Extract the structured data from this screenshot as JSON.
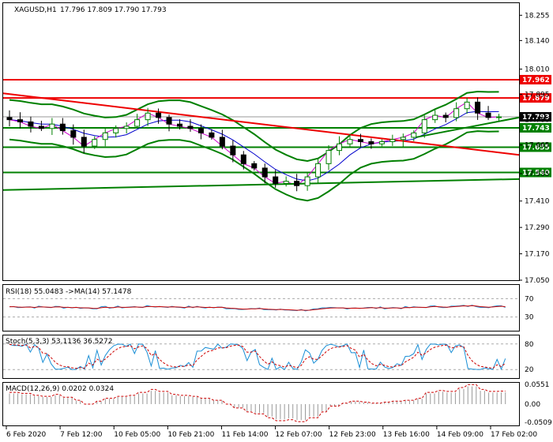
{
  "chart_data": {
    "type": "candlestick",
    "symbol": "XAGUSD,H1",
    "ohlc_label": "17.796 17.809 17.790 17.793",
    "price_ylim": [
      17.05,
      18.31
    ],
    "price_ticks": [
      "18.255",
      "18.140",
      "18.010",
      "17.895",
      "17.780",
      "17.665",
      "17.535",
      "17.410",
      "17.290",
      "17.170",
      "17.050"
    ],
    "x_labels": [
      "6 Feb 2020",
      "7 Feb 12:00",
      "10 Feb 05:00",
      "10 Feb 21:00",
      "11 Feb 14:00",
      "12 Feb 07:00",
      "12 Feb 23:00",
      "13 Feb 16:00",
      "14 Feb 09:00",
      "17 Feb 02:00"
    ],
    "price_closes": [
      17.78,
      17.77,
      17.75,
      17.74,
      17.76,
      17.73,
      17.7,
      17.66,
      17.69,
      17.72,
      17.74,
      17.75,
      17.78,
      17.81,
      17.79,
      17.76,
      17.75,
      17.74,
      17.72,
      17.7,
      17.66,
      17.62,
      17.58,
      17.56,
      17.52,
      17.49,
      17.5,
      17.48,
      17.52,
      17.58,
      17.64,
      17.67,
      17.69,
      17.68,
      17.67,
      17.68,
      17.69,
      17.7,
      17.72,
      17.78,
      17.8,
      17.79,
      17.83,
      17.86,
      17.81,
      17.79,
      17.793
    ],
    "levels": [
      {
        "label": "17.962",
        "value": 17.962,
        "color": "#ee0000"
      },
      {
        "label": "17.879",
        "value": 17.879,
        "color": "#ee0000"
      },
      {
        "label": "17.743",
        "value": 17.743,
        "color": "#008000"
      },
      {
        "label": "17.655",
        "value": 17.655,
        "color": "#008000"
      },
      {
        "label": "17.540",
        "value": 17.54,
        "color": "#008000"
      }
    ],
    "current_price": {
      "label": "17.793",
      "value": 17.793
    },
    "trendlines": [
      {
        "color": "#ee0000",
        "from": [
          0,
          17.9
        ],
        "to": [
          1,
          17.62
        ]
      },
      {
        "color": "#008000",
        "from": [
          0,
          17.46
        ],
        "to": [
          1,
          17.51
        ]
      },
      {
        "color": "#008000",
        "from": [
          0.8,
          17.7
        ],
        "to": [
          1,
          17.79
        ]
      }
    ],
    "rsi": {
      "label": "RSI(18) 55.0483 ->MA(14) 57.1478",
      "ticks": [
        "70",
        "30"
      ],
      "ylim": [
        0,
        100
      ],
      "levels": [
        70,
        30
      ]
    },
    "stoch": {
      "label": "Stoch(5,3,3) 53.1136 36.5272",
      "ticks": [
        "80",
        "20"
      ],
      "ylim": [
        0,
        100
      ],
      "levels": [
        80,
        20
      ]
    },
    "macd": {
      "label": "MACD(12,26,9) 0.0202 0.0324",
      "ticks": [
        "0.0551",
        "0.00",
        "-0.0509"
      ],
      "ylim": [
        -0.06,
        0.06
      ]
    },
    "colors": {
      "bull": "#008000",
      "bear": "#000000",
      "ma": "#0000cc",
      "signal": "#cc0000"
    }
  }
}
